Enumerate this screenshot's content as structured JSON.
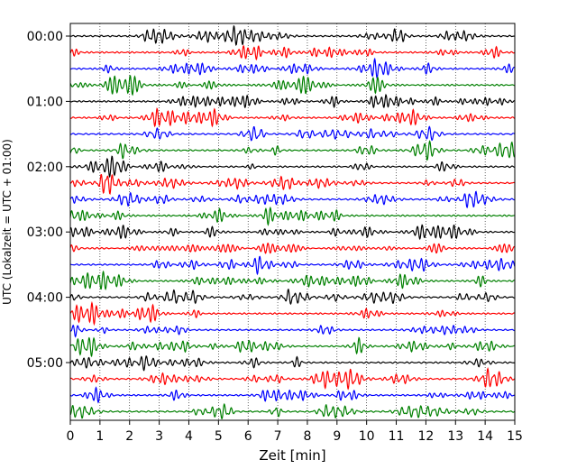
{
  "chart_data": {
    "type": "line",
    "title": "",
    "xlabel": "Zeit  [min]",
    "ylabel": "UTC (Lokalzeit = UTC + 01:00)",
    "xlim": [
      0,
      15
    ],
    "x_ticks": [
      "0",
      "1",
      "2",
      "3",
      "4",
      "5",
      "6",
      "7",
      "8",
      "9",
      "10",
      "11",
      "12",
      "13",
      "14",
      "15"
    ],
    "y_ticks": [
      "00:00",
      "01:00",
      "02:00",
      "03:00",
      "04:00",
      "05:00"
    ],
    "trace_interval_minutes": 15,
    "trace_count": 24,
    "trace_colors": [
      "#000000",
      "#ff0000",
      "#0000ff",
      "#008000"
    ],
    "grid": "vertical dotted lines at each minute",
    "legend": "none"
  }
}
